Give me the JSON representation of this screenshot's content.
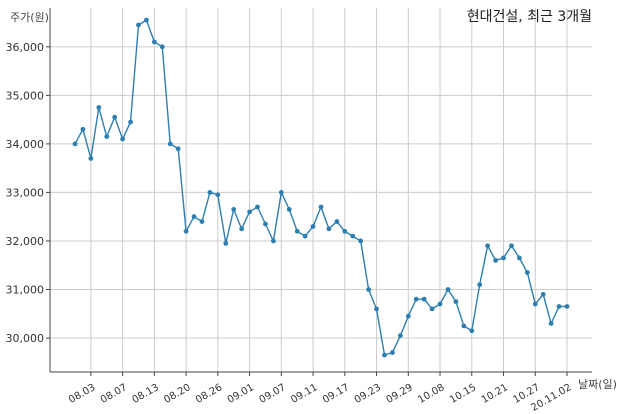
{
  "chart_data": {
    "type": "line",
    "title": "현대건설, 최근 3개월",
    "ylabel": "주가(원)",
    "xlabel": "날짜(일)",
    "ylim": [
      29300,
      36800
    ],
    "yticks": [
      30000,
      31000,
      32000,
      33000,
      34000,
      35000,
      36000
    ],
    "ytick_labels": [
      "30,000",
      "31,000",
      "32,000",
      "33,000",
      "34,000",
      "35,000",
      "36,000"
    ],
    "grid": true,
    "line_color": "#2e7fb0",
    "x": [
      "07.30",
      "07.31",
      "08.03",
      "08.04",
      "08.05",
      "08.06",
      "08.07",
      "08.10",
      "08.11",
      "08.12",
      "08.13",
      "08.14",
      "08.18",
      "08.19",
      "08.20",
      "08.21",
      "08.24",
      "08.25",
      "08.26",
      "08.27",
      "08.28",
      "08.31",
      "09.01",
      "09.02",
      "09.03",
      "09.04",
      "09.07",
      "09.08",
      "09.09",
      "09.10",
      "09.11",
      "09.14",
      "09.15",
      "09.16",
      "09.17",
      "09.18",
      "09.21",
      "09.22",
      "09.23",
      "09.24",
      "09.25",
      "09.28",
      "09.29",
      "10.05",
      "10.06",
      "10.07",
      "10.08",
      "10.12",
      "10.13",
      "10.14",
      "10.15",
      "10.16",
      "10.19",
      "10.20",
      "10.21",
      "10.22",
      "10.23",
      "10.26",
      "10.27",
      "10.28",
      "10.29",
      "10.30",
      "11.02"
    ],
    "values": [
      34000,
      34300,
      33700,
      34750,
      34150,
      34550,
      34100,
      34450,
      36450,
      36550,
      36100,
      36000,
      34000,
      33900,
      32200,
      32500,
      32400,
      33000,
      32950,
      31950,
      32650,
      32250,
      32600,
      32700,
      32350,
      32000,
      33000,
      32650,
      32200,
      32100,
      32300,
      32700,
      32250,
      32400,
      32200,
      32100,
      32000,
      31000,
      30600,
      29650,
      29700,
      30050,
      30450,
      30800,
      30800,
      30600,
      30700,
      31000,
      30750,
      30250,
      30150,
      31100,
      31900,
      31600,
      31650,
      31900,
      31650,
      31350,
      30700,
      30900,
      30300,
      30650,
      30650
    ],
    "xtick_labels": [
      "08.03",
      "08.07",
      "08.13",
      "08.20",
      "08.26",
      "09.01",
      "09.07",
      "09.11",
      "09.17",
      "09.23",
      "09.29",
      "10.08",
      "10.15",
      "10.21",
      "10.27",
      "20.11.02"
    ],
    "xtick_index": [
      2,
      6,
      10,
      14,
      18,
      22,
      26,
      30,
      34,
      38,
      42,
      46,
      50,
      54,
      58,
      62
    ]
  }
}
